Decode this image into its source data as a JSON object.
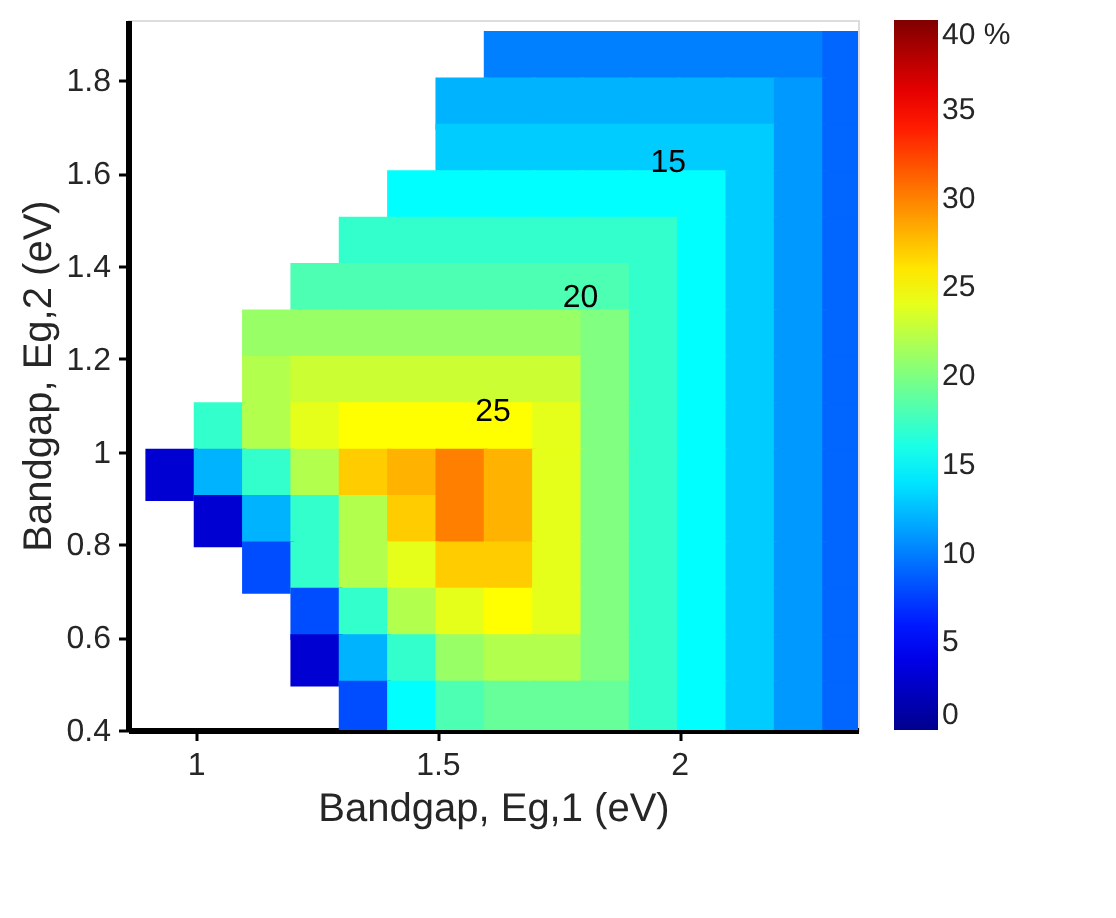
{
  "chart_data": {
    "type": "scatter",
    "xlabel": "Bandgap, Eg,1 (eV)",
    "ylabel": "Bandgap, Eg,2 (eV)",
    "marker": "square",
    "series": [
      {
        "x": [
          1.65,
          1.75,
          1.85,
          1.95,
          2.05,
          2.15,
          2.25,
          2.35
        ],
        "values": [
          1.85,
          1.85,
          1.85,
          1.85,
          1.85,
          1.85,
          1.85,
          1.85
        ],
        "cvalues": [
          10,
          10,
          10,
          10,
          10,
          10,
          10,
          9
        ],
        "colors": [
          "#0080ff",
          "#0080ff",
          "#0080ff",
          "#0080ff",
          "#0080ff",
          "#0080ff",
          "#0080ff",
          "#0066ff"
        ]
      },
      {
        "x": [
          1.55,
          1.65,
          1.75,
          1.85,
          1.95,
          2.05,
          2.15,
          2.25,
          2.35
        ],
        "values": [
          1.75,
          1.75,
          1.75,
          1.75,
          1.75,
          1.75,
          1.75,
          1.75,
          1.75
        ],
        "cvalues": [
          12,
          12,
          12,
          12,
          12,
          12,
          12,
          11,
          9
        ],
        "colors": [
          "#00b3ff",
          "#00b3ff",
          "#00b3ff",
          "#00b3ff",
          "#00b3ff",
          "#00b3ff",
          "#00b3ff",
          "#0099ff",
          "#0066ff"
        ]
      },
      {
        "x": [
          1.55,
          1.65,
          1.75,
          1.85,
          1.95,
          2.05,
          2.15,
          2.25,
          2.35
        ],
        "values": [
          1.65,
          1.65,
          1.65,
          1.65,
          1.65,
          1.65,
          1.65,
          1.65,
          1.65
        ],
        "cvalues": [
          13,
          13,
          13,
          13,
          13,
          13,
          13,
          11,
          9
        ],
        "colors": [
          "#00ccff",
          "#00ccff",
          "#00ccff",
          "#00ccff",
          "#00ccff",
          "#00ccff",
          "#00ccff",
          "#0099ff",
          "#0066ff"
        ]
      },
      {
        "x": [
          1.45,
          1.55,
          1.65,
          1.75,
          1.85,
          1.95,
          2.05,
          2.15,
          2.25,
          2.35
        ],
        "values": [
          1.55,
          1.55,
          1.55,
          1.55,
          1.55,
          1.55,
          1.55,
          1.55,
          1.55,
          1.55
        ],
        "cvalues": [
          15,
          15,
          15,
          15,
          15,
          15,
          15,
          13,
          11,
          9
        ],
        "colors": [
          "#00ffff",
          "#00ffff",
          "#00ffff",
          "#00ffff",
          "#00ffff",
          "#00ffff",
          "#00ffff",
          "#00ccff",
          "#0099ff",
          "#0066ff"
        ]
      },
      {
        "x": [
          1.35,
          1.45,
          1.55,
          1.65,
          1.75,
          1.85,
          1.95,
          2.05,
          2.15,
          2.25,
          2.35
        ],
        "values": [
          1.45,
          1.45,
          1.45,
          1.45,
          1.45,
          1.45,
          1.45,
          1.45,
          1.45,
          1.45,
          1.45
        ],
        "cvalues": [
          17,
          17,
          17,
          17,
          17,
          17,
          17,
          15,
          13,
          11,
          9
        ],
        "colors": [
          "#33ffcc",
          "#33ffcc",
          "#33ffcc",
          "#33ffcc",
          "#33ffcc",
          "#33ffcc",
          "#33ffcc",
          "#00ffff",
          "#00ccff",
          "#0099ff",
          "#0066ff"
        ]
      },
      {
        "x": [
          1.25,
          1.35,
          1.45,
          1.55,
          1.65,
          1.75,
          1.85,
          1.95,
          2.05,
          2.15,
          2.25,
          2.35
        ],
        "values": [
          1.35,
          1.35,
          1.35,
          1.35,
          1.35,
          1.35,
          1.35,
          1.35,
          1.35,
          1.35,
          1.35,
          1.35
        ],
        "cvalues": [
          18,
          18,
          18,
          18,
          18,
          18,
          18,
          17,
          15,
          13,
          11,
          9
        ],
        "colors": [
          "#4dffb2",
          "#4dffb2",
          "#4dffb2",
          "#4dffb2",
          "#4dffb2",
          "#4dffb2",
          "#4dffb2",
          "#33ffcc",
          "#00ffff",
          "#00ccff",
          "#0099ff",
          "#0066ff"
        ]
      },
      {
        "x": [
          1.15,
          1.25,
          1.35,
          1.45,
          1.55,
          1.65,
          1.75,
          1.85,
          1.95,
          2.05,
          2.15,
          2.25,
          2.35
        ],
        "values": [
          1.25,
          1.25,
          1.25,
          1.25,
          1.25,
          1.25,
          1.25,
          1.25,
          1.25,
          1.25,
          1.25,
          1.25,
          1.25
        ],
        "cvalues": [
          21,
          21,
          21,
          21,
          21,
          21,
          21,
          20,
          17,
          15,
          13,
          11,
          9
        ],
        "colors": [
          "#99ff66",
          "#99ff66",
          "#99ff66",
          "#99ff66",
          "#99ff66",
          "#99ff66",
          "#99ff66",
          "#80ff80",
          "#33ffcc",
          "#00ffff",
          "#00ccff",
          "#0099ff",
          "#0066ff"
        ]
      },
      {
        "x": [
          1.15,
          1.25,
          1.35,
          1.45,
          1.55,
          1.65,
          1.75,
          1.85,
          1.95,
          2.05,
          2.15,
          2.25,
          2.35
        ],
        "values": [
          1.15,
          1.15,
          1.15,
          1.15,
          1.15,
          1.15,
          1.15,
          1.15,
          1.15,
          1.15,
          1.15,
          1.15,
          1.15
        ],
        "cvalues": [
          22,
          23,
          23,
          23,
          23,
          23,
          23,
          20,
          17,
          15,
          13,
          11,
          9
        ],
        "colors": [
          "#b3ff4d",
          "#ccff33",
          "#ccff33",
          "#ccff33",
          "#ccff33",
          "#ccff33",
          "#ccff33",
          "#80ff80",
          "#33ffcc",
          "#00ffff",
          "#00ccff",
          "#0099ff",
          "#0066ff"
        ]
      },
      {
        "x": [
          1.05,
          1.15,
          1.25,
          1.35,
          1.45,
          1.55,
          1.65,
          1.75,
          1.85,
          1.95,
          2.05,
          2.15,
          2.25,
          2.35
        ],
        "values": [
          1.05,
          1.05,
          1.05,
          1.05,
          1.05,
          1.05,
          1.05,
          1.05,
          1.05,
          1.05,
          1.05,
          1.05,
          1.05,
          1.05
        ],
        "cvalues": [
          17,
          22,
          24,
          25,
          25,
          25,
          25,
          24,
          20,
          17,
          15,
          13,
          11,
          9
        ],
        "colors": [
          "#33ffcc",
          "#b3ff4d",
          "#e6ff1a",
          "#ffff00",
          "#ffff00",
          "#ffff00",
          "#ffff00",
          "#e6ff1a",
          "#80ff80",
          "#33ffcc",
          "#00ffff",
          "#00ccff",
          "#0099ff",
          "#0066ff"
        ]
      },
      {
        "x": [
          0.95,
          1.05,
          1.15,
          1.25,
          1.35,
          1.45,
          1.55,
          1.65,
          1.75,
          1.85,
          1.95,
          2.05,
          2.15,
          2.25,
          2.35
        ],
        "values": [
          0.95,
          0.95,
          0.95,
          0.95,
          0.95,
          0.95,
          0.95,
          0.95,
          0.95,
          0.95,
          0.95,
          0.95,
          0.95,
          0.95,
          0.95
        ],
        "cvalues": [
          3,
          12,
          17,
          22,
          27,
          28,
          30,
          28,
          24,
          20,
          17,
          15,
          13,
          11,
          9
        ],
        "colors": [
          "#0000d2",
          "#00b3ff",
          "#33ffcc",
          "#b3ff4d",
          "#ffcc00",
          "#ffb300",
          "#ff8000",
          "#ffb300",
          "#e6ff1a",
          "#80ff80",
          "#33ffcc",
          "#00ffff",
          "#00ccff",
          "#0099ff",
          "#0066ff"
        ]
      },
      {
        "x": [
          1.05,
          1.15,
          1.25,
          1.35,
          1.45,
          1.55,
          1.65,
          1.75,
          1.85,
          1.95,
          2.05,
          2.15,
          2.25,
          2.35
        ],
        "values": [
          0.85,
          0.85,
          0.85,
          0.85,
          0.85,
          0.85,
          0.85,
          0.85,
          0.85,
          0.85,
          0.85,
          0.85,
          0.85,
          0.85
        ],
        "cvalues": [
          3,
          12,
          17,
          22,
          27,
          30,
          28,
          24,
          20,
          17,
          15,
          13,
          11,
          9
        ],
        "colors": [
          "#0000d2",
          "#00b3ff",
          "#33ffcc",
          "#b3ff4d",
          "#ffcc00",
          "#ff8000",
          "#ffb300",
          "#e6ff1a",
          "#80ff80",
          "#33ffcc",
          "#00ffff",
          "#00ccff",
          "#0099ff",
          "#0066ff"
        ]
      },
      {
        "x": [
          1.15,
          1.25,
          1.35,
          1.45,
          1.55,
          1.65,
          1.75,
          1.85,
          1.95,
          2.05,
          2.15,
          2.25,
          2.35
        ],
        "values": [
          0.75,
          0.75,
          0.75,
          0.75,
          0.75,
          0.75,
          0.75,
          0.75,
          0.75,
          0.75,
          0.75,
          0.75,
          0.75
        ],
        "cvalues": [
          8,
          17,
          22,
          24,
          27,
          27,
          24,
          20,
          17,
          15,
          13,
          11,
          9
        ],
        "colors": [
          "#004dff",
          "#33ffcc",
          "#b3ff4d",
          "#e6ff1a",
          "#ffcc00",
          "#ffcc00",
          "#e6ff1a",
          "#80ff80",
          "#33ffcc",
          "#00ffff",
          "#00ccff",
          "#0099ff",
          "#0066ff"
        ]
      },
      {
        "x": [
          1.25,
          1.35,
          1.45,
          1.55,
          1.65,
          1.75,
          1.85,
          1.95,
          2.05,
          2.15,
          2.25,
          2.35
        ],
        "values": [
          0.65,
          0.65,
          0.65,
          0.65,
          0.65,
          0.65,
          0.65,
          0.65,
          0.65,
          0.65,
          0.65,
          0.65
        ],
        "cvalues": [
          8,
          17,
          22,
          24,
          25,
          24,
          20,
          17,
          15,
          13,
          11,
          9
        ],
        "colors": [
          "#004dff",
          "#33ffcc",
          "#b3ff4d",
          "#e6ff1a",
          "#ffff00",
          "#e6ff1a",
          "#80ff80",
          "#33ffcc",
          "#00ffff",
          "#00ccff",
          "#0099ff",
          "#0066ff"
        ]
      },
      {
        "x": [
          1.25,
          1.35,
          1.45,
          1.55,
          1.65,
          1.75,
          1.85,
          1.95,
          2.05,
          2.15,
          2.25,
          2.35
        ],
        "values": [
          0.55,
          0.55,
          0.55,
          0.55,
          0.55,
          0.55,
          0.55,
          0.55,
          0.55,
          0.55,
          0.55,
          0.55
        ],
        "cvalues": [
          3,
          12,
          17,
          21,
          22,
          22,
          20,
          17,
          15,
          13,
          11,
          9
        ],
        "colors": [
          "#0000d2",
          "#00b3ff",
          "#33ffcc",
          "#99ff66",
          "#b3ff4d",
          "#b3ff4d",
          "#80ff80",
          "#33ffcc",
          "#00ffff",
          "#00ccff",
          "#0099ff",
          "#0066ff"
        ]
      },
      {
        "x": [
          1.35,
          1.45,
          1.55,
          1.65,
          1.75,
          1.85,
          1.95,
          2.05,
          2.15,
          2.25,
          2.35
        ],
        "values": [
          0.45,
          0.45,
          0.45,
          0.45,
          0.45,
          0.45,
          0.45,
          0.45,
          0.45,
          0.45,
          0.45
        ],
        "cvalues": [
          8,
          15,
          18,
          19,
          19,
          19,
          17,
          15,
          13,
          11,
          9
        ],
        "colors": [
          "#004dff",
          "#00ffff",
          "#4dffb2",
          "#66ff99",
          "#66ff99",
          "#66ff99",
          "#33ffcc",
          "#00ffff",
          "#00ccff",
          "#0099ff",
          "#0066ff"
        ]
      }
    ],
    "xlim": [
      0.86,
      2.37
    ],
    "xticks": [
      1,
      1.5,
      2
    ],
    "ylim": [
      0.4,
      1.93
    ],
    "yticks": [
      0.4,
      0.6,
      0.8,
      1,
      1.2,
      1.4,
      1.6,
      1.8
    ],
    "clim": [
      0,
      40
    ],
    "cticks": [
      0,
      5,
      10,
      15,
      20,
      25,
      30,
      35,
      {
        "value": 40,
        "label": "40 %"
      }
    ],
    "annotations": [
      "15",
      "20",
      "25"
    ],
    "grid": false
  }
}
